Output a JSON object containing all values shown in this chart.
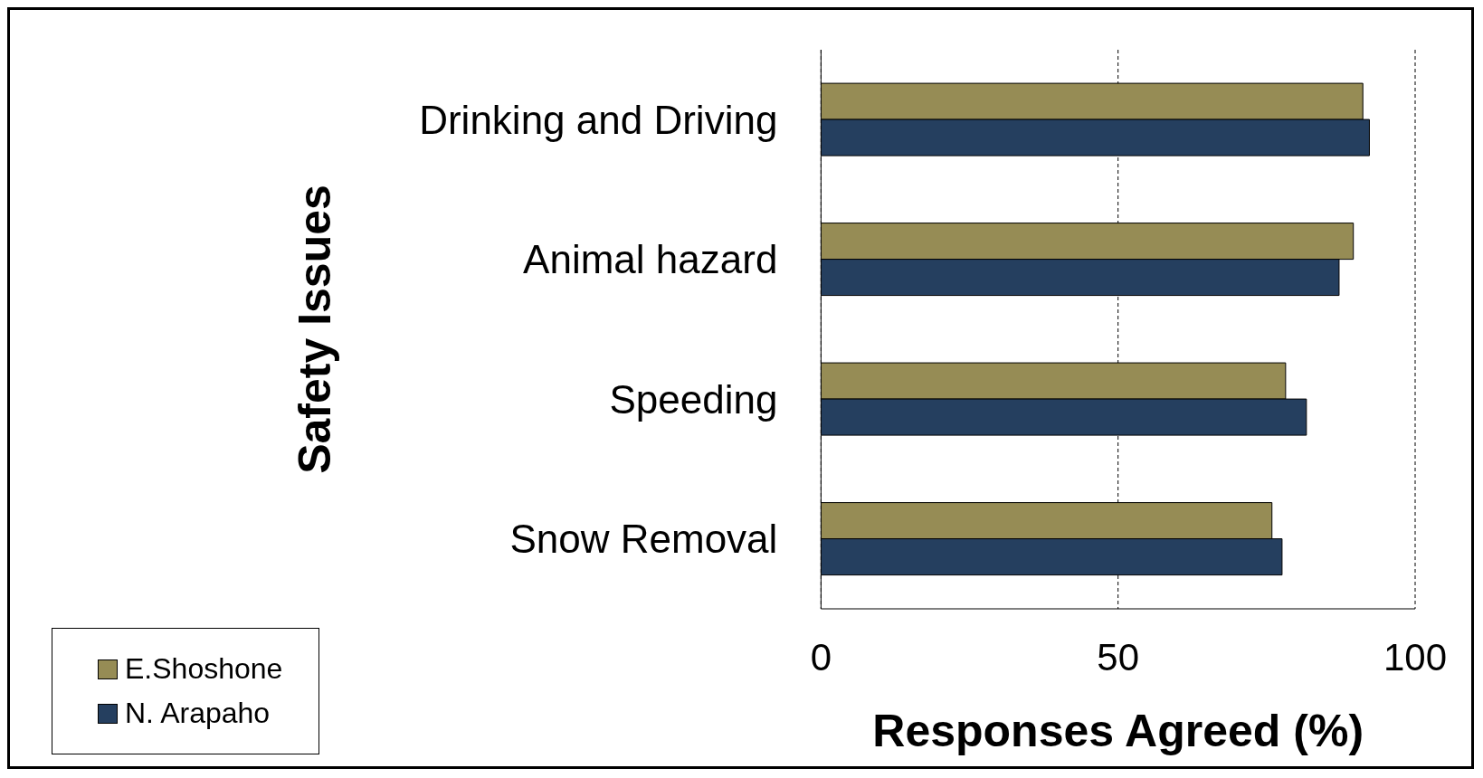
{
  "chart_data": {
    "type": "bar",
    "orientation": "horizontal",
    "xlabel": "Responses Agreed (%)",
    "ylabel": "Safety Issues",
    "categories": [
      "Drinking and Driving",
      "Animal hazard",
      "Speeding",
      "Snow Removal"
    ],
    "series": [
      {
        "name": "E.Shoshone",
        "color": "#968c55",
        "values": [
          91.2,
          89.6,
          78.2,
          75.9
        ]
      },
      {
        "name": "N. Arapaho",
        "color": "#253f5f",
        "values": [
          92.3,
          87.2,
          81.7,
          77.6
        ]
      }
    ],
    "xlim": [
      0,
      100
    ],
    "xticks": [
      0,
      50,
      100
    ],
    "grid": "x",
    "line_style": "dashed",
    "legend": "bottom left"
  }
}
